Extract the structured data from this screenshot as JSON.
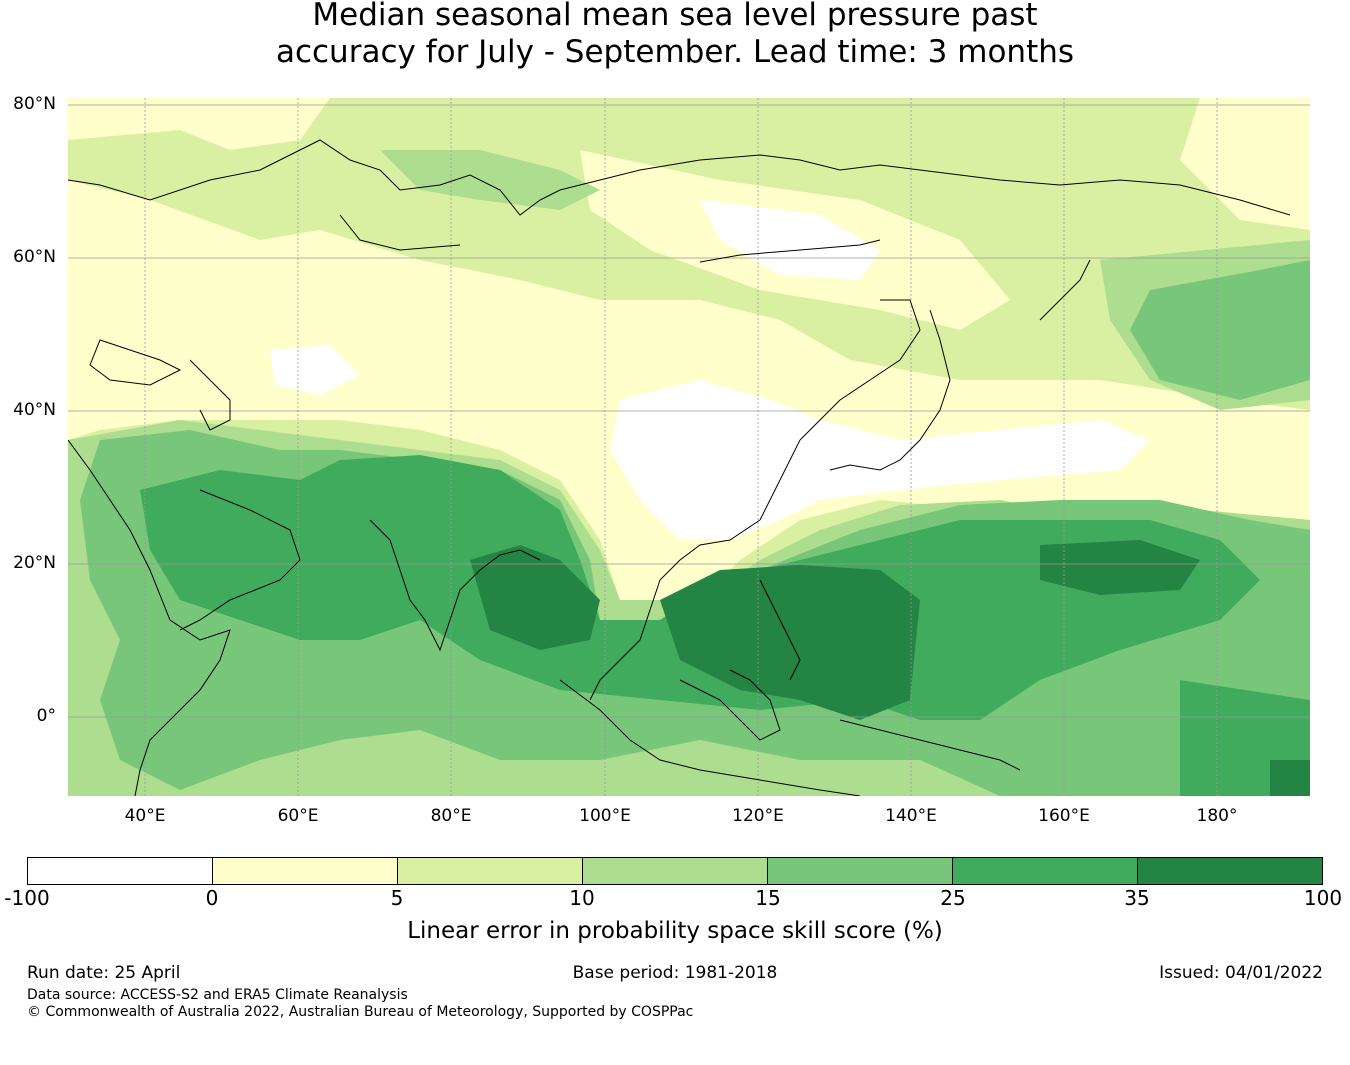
{
  "title": {
    "line1": "Median seasonal mean sea level pressure past",
    "line2": "accuracy for July - September. Lead time: 3 months"
  },
  "map": {
    "region": "Asia and Western Pacific",
    "lat_labels": [
      "80°N",
      "60°N",
      "40°N",
      "20°N",
      "0°"
    ],
    "lon_labels": [
      "40°E",
      "60°E",
      "80°E",
      "100°E",
      "120°E",
      "140°E",
      "160°E",
      "180°"
    ],
    "colors": {
      "below_0": "#ffffff",
      "0_5": "#ffffcc",
      "5_10": "#d9f0a3",
      "10_15": "#addd8e",
      "15_25": "#78c679",
      "25_35": "#41ab5d",
      "35_100": "#238443"
    }
  },
  "colorbar": {
    "ticks": [
      "-100",
      "0",
      "5",
      "10",
      "15",
      "25",
      "35",
      "100"
    ],
    "label": "Linear error in probability space skill score (%)"
  },
  "footer": {
    "run_date": "Run date: 25 April",
    "base_period": "Base period: 1981-2018",
    "issued": "Issued: 04/01/2022",
    "data_source": "Data source: ACCESS-S2 and ERA5 Climate Reanalysis",
    "copyright": "© Commonwealth of Australia 2022, Australian Bureau of Meteorology, Supported by COSPPac"
  }
}
